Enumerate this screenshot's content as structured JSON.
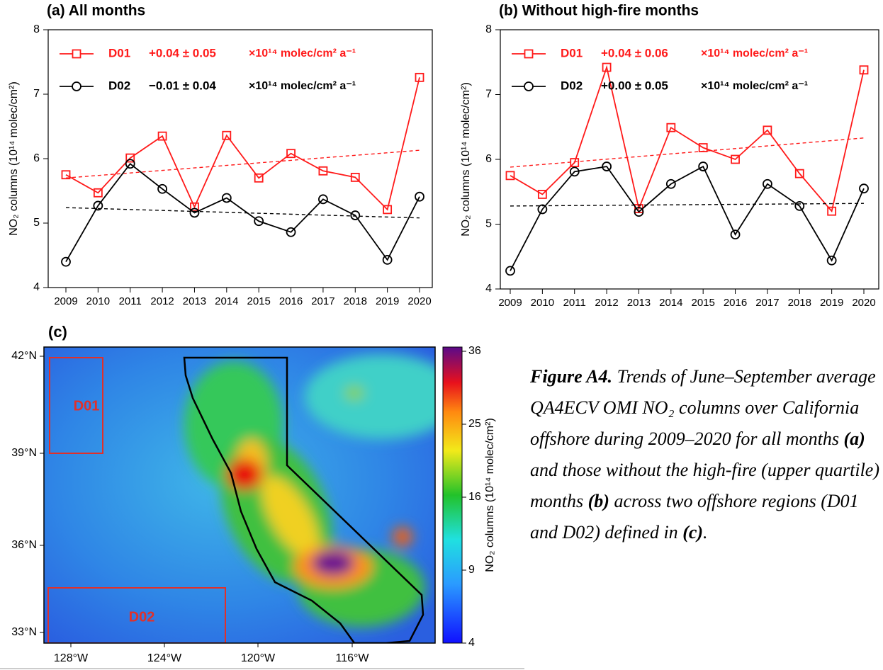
{
  "chart_data": [
    {
      "type": "line",
      "title": "(a) All months",
      "y_label": "NO₂ columns (10¹⁴ molec/cm²)",
      "categories": [
        "2009",
        "2010",
        "2011",
        "2012",
        "2013",
        "2014",
        "2015",
        "2016",
        "2017",
        "2018",
        "2019",
        "2020"
      ],
      "ylim": [
        4,
        8
      ],
      "yticks": [
        4,
        5,
        6,
        7,
        8
      ],
      "series": [
        {
          "name": "D01",
          "color": "#ff1a1a",
          "marker": "square",
          "trend_label": "+0.04 ± 0.05",
          "unit_label": "×10¹⁴ molec/cm² a⁻¹",
          "values": [
            5.75,
            5.47,
            6.01,
            6.35,
            5.25,
            6.36,
            5.7,
            6.08,
            5.81,
            5.71,
            5.21,
            7.26
          ],
          "trend": [
            5.7,
            6.13
          ]
        },
        {
          "name": "D02",
          "color": "#000000",
          "marker": "circle",
          "trend_label": "−0.01 ± 0.04",
          "unit_label": "×10¹⁴ molec/cm² a⁻¹",
          "values": [
            4.4,
            5.27,
            5.92,
            5.53,
            5.16,
            5.39,
            5.03,
            4.86,
            5.37,
            5.12,
            4.43,
            5.41
          ],
          "trend": [
            5.24,
            5.08
          ]
        }
      ]
    },
    {
      "type": "line",
      "title": "(b) Without high-fire months",
      "y_label": "NO₂ columns (10¹⁴ molec/cm²)",
      "categories": [
        "2009",
        "2010",
        "2011",
        "2012",
        "2013",
        "2014",
        "2015",
        "2016",
        "2017",
        "2018",
        "2019",
        "2020"
      ],
      "ylim": [
        4,
        8
      ],
      "yticks": [
        4,
        5,
        6,
        7,
        8
      ],
      "series": [
        {
          "name": "D01",
          "color": "#ff1a1a",
          "marker": "square",
          "trend_label": "+0.04 ± 0.06",
          "unit_label": "×10¹⁴ molec/cm² a⁻¹",
          "values": [
            5.75,
            5.46,
            5.95,
            7.42,
            5.24,
            6.49,
            6.18,
            6.0,
            6.45,
            5.78,
            5.2,
            7.38
          ],
          "trend": [
            5.88,
            6.33
          ]
        },
        {
          "name": "D02",
          "color": "#000000",
          "marker": "circle",
          "trend_label": "+0.00 ± 0.05",
          "unit_label": "×10¹⁴ molec/cm² a⁻¹",
          "values": [
            4.28,
            5.23,
            5.81,
            5.89,
            5.19,
            5.62,
            5.89,
            4.84,
            5.62,
            5.28,
            4.44,
            5.55
          ],
          "trend": [
            5.28,
            5.32
          ]
        }
      ]
    }
  ],
  "map": {
    "title": "(c)",
    "lat_labels": [
      "42°N",
      "39°N",
      "36°N",
      "33°N"
    ],
    "lon_labels": [
      "128°W",
      "124°W",
      "120°W",
      "116°W"
    ],
    "regions": [
      "D01",
      "D02"
    ],
    "colorbar": {
      "label": "NO₂ columns (10¹⁴ molec/cm²)",
      "scale": "sqrt",
      "clim": [
        4,
        36
      ],
      "ticks": [
        4,
        9,
        16,
        25,
        36
      ]
    }
  },
  "caption": [
    {
      "text": "Figure A4.",
      "bold": true
    },
    {
      "text": " Trends of June–September average QA4ECV OMI NO₂ columns over California offshore during 2009–2020 for all months "
    },
    {
      "text": "(a)",
      "bold": true
    },
    {
      "text": " and those without the high-fire (upper quartile) months "
    },
    {
      "text": "(b)",
      "bold": true
    },
    {
      "text": " across two offshore regions (D01 and D02) defined in "
    },
    {
      "text": "(c)",
      "bold": true
    },
    {
      "text": "."
    }
  ]
}
